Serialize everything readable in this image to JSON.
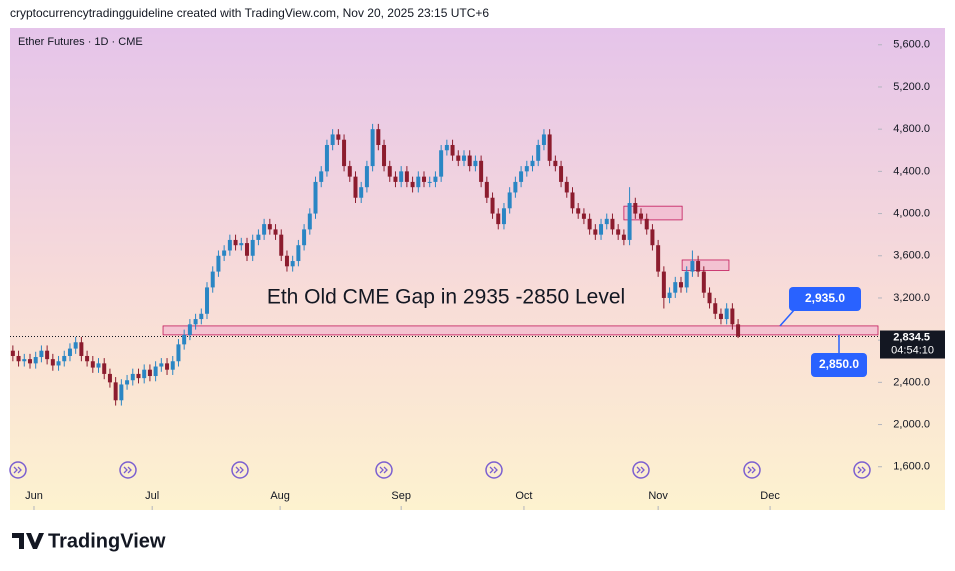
{
  "header": "cryptocurrencytradingguideline created with TradingView.com, Nov 20, 2025 23:15 UTC+6",
  "brand": "TradingView",
  "chart_data": {
    "type": "candlestick",
    "title": "Ether Futures · 1D · CME",
    "annotation": "Eth Old CME Gap in 2935 -2850 Level",
    "up_color": "#2a86c4",
    "down_color": "#8c1c2e",
    "open": [
      2700,
      2650,
      2600,
      2620,
      2580,
      2640,
      2700,
      2620,
      2560,
      2600,
      2650,
      2720,
      2780,
      2650,
      2600,
      2540,
      2580,
      2480,
      2400,
      2230,
      2380,
      2420,
      2480,
      2440,
      2520,
      2460,
      2550,
      2580,
      2520,
      2600,
      2760,
      2850,
      2950,
      3000,
      3050,
      3300,
      3450,
      3600,
      3650,
      3750,
      3700,
      3720,
      3600,
      3750,
      3800,
      3900,
      3850,
      3800,
      3600,
      3500,
      3550,
      3700,
      3850,
      4000,
      4300,
      4400,
      4650,
      4750,
      4700,
      4450,
      4350,
      4150,
      4250,
      4450,
      4800,
      4650,
      4450,
      4350,
      4300,
      4400,
      4300,
      4250,
      4350,
      4300,
      4300,
      4350,
      4600,
      4650,
      4550,
      4500,
      4550,
      4450,
      4500,
      4300,
      4150,
      4000,
      3900,
      4050,
      4200,
      4300,
      4400,
      4450,
      4500,
      4650,
      4750,
      4500,
      4450,
      4300,
      4200,
      4050,
      4000,
      3950,
      3850,
      3800,
      3900,
      3950,
      3850,
      3800,
      3750,
      4100,
      4000,
      3950,
      3850,
      3700,
      3450,
      3200,
      3250,
      3350,
      3300,
      3450,
      3550,
      3450,
      3250,
      3150,
      3050,
      3000,
      3100,
      2950
    ],
    "high": [
      2750,
      2700,
      2670,
      2670,
      2690,
      2750,
      2750,
      2670,
      2650,
      2700,
      2770,
      2830,
      2830,
      2700,
      2650,
      2630,
      2630,
      2530,
      2450,
      2430,
      2470,
      2530,
      2530,
      2570,
      2570,
      2600,
      2630,
      2630,
      2650,
      2810,
      2900,
      3000,
      3050,
      3100,
      3350,
      3500,
      3650,
      3700,
      3800,
      3800,
      3770,
      3770,
      3800,
      3850,
      3950,
      3950,
      3900,
      3850,
      3650,
      3600,
      3750,
      3900,
      4050,
      4350,
      4450,
      4700,
      4800,
      4800,
      4750,
      4500,
      4400,
      4300,
      4500,
      4850,
      4850,
      4700,
      4500,
      4400,
      4450,
      4450,
      4350,
      4400,
      4400,
      4350,
      4400,
      4650,
      4700,
      4700,
      4600,
      4600,
      4600,
      4550,
      4550,
      4350,
      4200,
      4050,
      4100,
      4250,
      4350,
      4450,
      4500,
      4550,
      4700,
      4800,
      4800,
      4550,
      4500,
      4350,
      4250,
      4100,
      4050,
      4000,
      3900,
      3950,
      4000,
      4000,
      3900,
      3850,
      4250,
      4150,
      4050,
      4000,
      3900,
      3750,
      3500,
      3300,
      3400,
      3400,
      3500,
      3650,
      3600,
      3500,
      3300,
      3200,
      3100,
      3150,
      3150,
      3000
    ],
    "low": [
      2600,
      2550,
      2550,
      2530,
      2530,
      2590,
      2570,
      2510,
      2510,
      2550,
      2600,
      2670,
      2600,
      2550,
      2490,
      2490,
      2430,
      2350,
      2180,
      2180,
      2330,
      2370,
      2390,
      2390,
      2410,
      2410,
      2500,
      2470,
      2470,
      2550,
      2710,
      2800,
      2900,
      2950,
      3000,
      3250,
      3400,
      3550,
      3600,
      3650,
      3650,
      3550,
      3550,
      3700,
      3750,
      3800,
      3750,
      3550,
      3450,
      3450,
      3500,
      3650,
      3800,
      3950,
      4250,
      4350,
      4600,
      4650,
      4400,
      4300,
      4100,
      4100,
      4200,
      4400,
      4600,
      4400,
      4300,
      4250,
      4250,
      4250,
      4200,
      4200,
      4250,
      4250,
      4250,
      4300,
      4550,
      4500,
      4450,
      4450,
      4400,
      4400,
      4250,
      4100,
      3950,
      3850,
      3850,
      4000,
      4150,
      4250,
      4350,
      4400,
      4450,
      4600,
      4450,
      4400,
      4250,
      4150,
      4000,
      3950,
      3900,
      3800,
      3750,
      3750,
      3850,
      3800,
      3750,
      3700,
      3700,
      3950,
      3900,
      3800,
      3650,
      3400,
      3100,
      3150,
      3200,
      3250,
      3250,
      3400,
      3400,
      3200,
      3100,
      3000,
      2950,
      2950,
      2900,
      2820
    ],
    "close": [
      2650,
      2600,
      2620,
      2580,
      2640,
      2700,
      2620,
      2560,
      2600,
      2650,
      2720,
      2780,
      2650,
      2600,
      2540,
      2580,
      2480,
      2400,
      2230,
      2380,
      2420,
      2480,
      2440,
      2520,
      2460,
      2550,
      2580,
      2520,
      2600,
      2760,
      2850,
      2950,
      3000,
      3050,
      3300,
      3450,
      3600,
      3650,
      3750,
      3700,
      3720,
      3600,
      3750,
      3800,
      3900,
      3850,
      3800,
      3600,
      3500,
      3550,
      3700,
      3850,
      4000,
      4300,
      4400,
      4650,
      4750,
      4700,
      4450,
      4350,
      4150,
      4250,
      4450,
      4800,
      4650,
      4450,
      4350,
      4300,
      4400,
      4300,
      4250,
      4350,
      4300,
      4300,
      4350,
      4600,
      4650,
      4550,
      4500,
      4550,
      4450,
      4500,
      4300,
      4150,
      4000,
      3900,
      4050,
      4200,
      4300,
      4400,
      4450,
      4500,
      4650,
      4750,
      4500,
      4450,
      4300,
      4200,
      4050,
      4000,
      3950,
      3850,
      3800,
      3900,
      3950,
      3850,
      3800,
      3750,
      4100,
      4000,
      3950,
      3850,
      3700,
      3450,
      3200,
      3250,
      3350,
      3300,
      3450,
      3550,
      3450,
      3250,
      3150,
      3050,
      3000,
      3100,
      2950,
      2834.5
    ],
    "xlim": [
      -0.5,
      151.5
    ],
    "xticks": [
      {
        "value": 3.7,
        "label": "Jun"
      },
      {
        "value": 24.4,
        "label": "Jul"
      },
      {
        "value": 46.8,
        "label": "Aug"
      },
      {
        "value": 68,
        "label": "Sep"
      },
      {
        "value": 89.5,
        "label": "Oct"
      },
      {
        "value": 113,
        "label": "Nov"
      },
      {
        "value": 132.6,
        "label": "Dec"
      }
    ],
    "ylim": [
      1190,
      5740
    ],
    "yticks": [
      {
        "value": 1600,
        "label": "1,600.0"
      },
      {
        "value": 2000,
        "label": "2,000.0"
      },
      {
        "value": 2400,
        "label": "2,400.0"
      },
      {
        "value": 2800,
        "label": "2,800.0"
      },
      {
        "value": 3200,
        "label": "3,200.0"
      },
      {
        "value": 3600,
        "label": "3,600.0"
      },
      {
        "value": 4000,
        "label": "4,000.0"
      },
      {
        "value": 4400,
        "label": "4,400.0"
      },
      {
        "value": 4800,
        "label": "4,800.0"
      },
      {
        "value": 5200,
        "label": "5,200.0"
      },
      {
        "value": 5600,
        "label": "5,600.0"
      }
    ],
    "zones": [
      {
        "x": [
          26.3,
          151.5
        ],
        "y": [
          2850,
          2935
        ]
      },
      {
        "x": [
          107,
          117.2
        ],
        "y": [
          3940,
          4070
        ]
      },
      {
        "x": [
          117.2,
          125.4
        ],
        "y": [
          3460,
          3560
        ]
      }
    ],
    "price_labels": [
      {
        "value": 2935,
        "label": "2,935.0"
      },
      {
        "value": 2850,
        "label": "2,850.0"
      }
    ],
    "last_price": {
      "value": 2834.5,
      "label": "2,834.5"
    },
    "countdown": "04:54:10"
  }
}
